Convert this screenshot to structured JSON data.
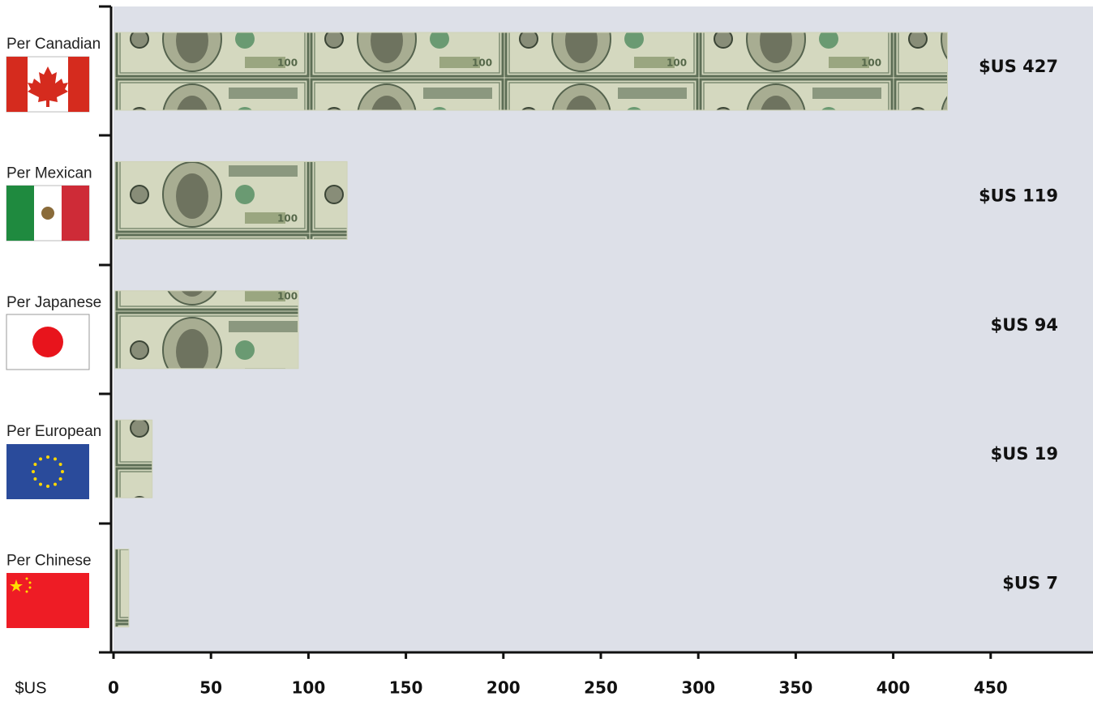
{
  "chart_data": {
    "type": "bar",
    "orientation": "horizontal",
    "categories": [
      "Per Canadian",
      "Per Mexican",
      "Per Japanese",
      "Per European",
      "Per Chinese"
    ],
    "values": [
      427,
      119,
      94,
      19,
      7
    ],
    "value_labels": [
      "$US 427",
      "$US 119",
      "$US 94",
      "$US 19",
      "$US 7"
    ],
    "x_label": "$US",
    "xlim": [
      0,
      500
    ],
    "xticks": [
      0,
      50,
      100,
      150,
      200,
      250,
      300,
      350,
      400,
      450
    ],
    "color": "#cfd3b8"
  }
}
